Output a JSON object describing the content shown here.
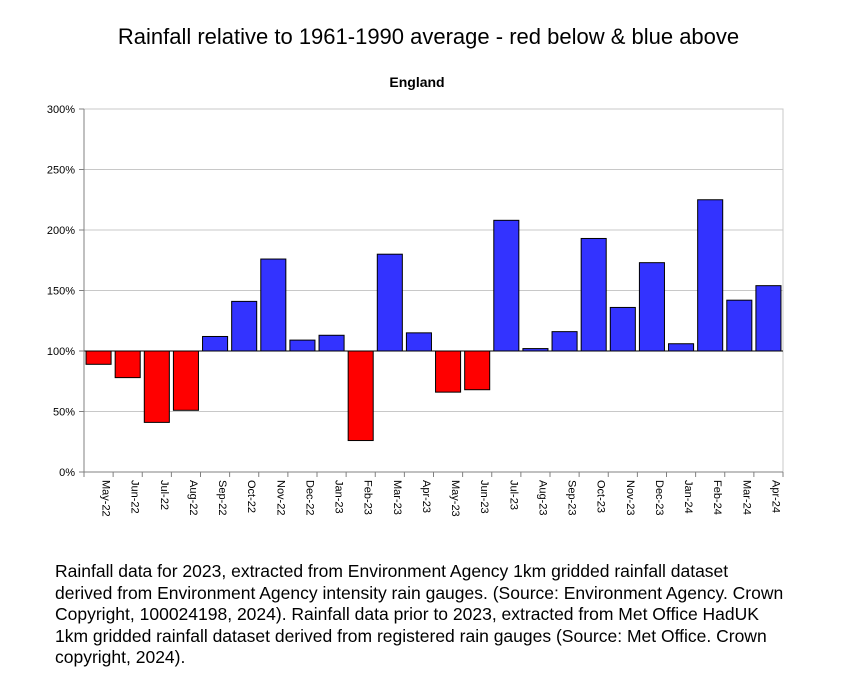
{
  "header": {
    "title": "Rainfall relative to 1961-1990 average - red below & blue above"
  },
  "colors": {
    "below": "#ff0000",
    "above": "#3333ff"
  },
  "chart_data": {
    "type": "bar",
    "title": "England",
    "xlabel": "",
    "ylabel": "",
    "ylim": [
      0,
      300
    ],
    "baseline": 100,
    "y_ticks": [
      "0%",
      "50%",
      "100%",
      "150%",
      "200%",
      "250%",
      "300%"
    ],
    "categories": [
      "May-22",
      "Jun-22",
      "Jul-22",
      "Aug-22",
      "Sep-22",
      "Oct-22",
      "Nov-22",
      "Dec-22",
      "Jan-23",
      "Feb-23",
      "Mar-23",
      "Apr-23",
      "May-23",
      "Jun-23",
      "Jul-23",
      "Aug-23",
      "Sep-23",
      "Oct-23",
      "Nov-23",
      "Dec-23",
      "Jan-24",
      "Feb-24",
      "Mar-24",
      "Apr-24"
    ],
    "values": [
      89,
      78,
      41,
      51,
      112,
      141,
      176,
      109,
      113,
      26,
      180,
      115,
      66,
      68,
      208,
      102,
      116,
      193,
      136,
      173,
      106,
      225,
      142,
      154
    ],
    "grid": true
  },
  "caption": {
    "lines": [
      "Rainfall data for 2023, extracted from Environment Agency 1km gridded rainfall dataset",
      "derived from Environment Agency intensity rain gauges. (Source: Environment Agency. Crown",
      "Copyright, 100024198, 2024). Rainfall data prior to 2023, extracted from Met Office HadUK",
      "1km gridded rainfall dataset derived from registered rain gauges (Source: Met Office. Crown",
      "copyright, 2024)."
    ]
  }
}
